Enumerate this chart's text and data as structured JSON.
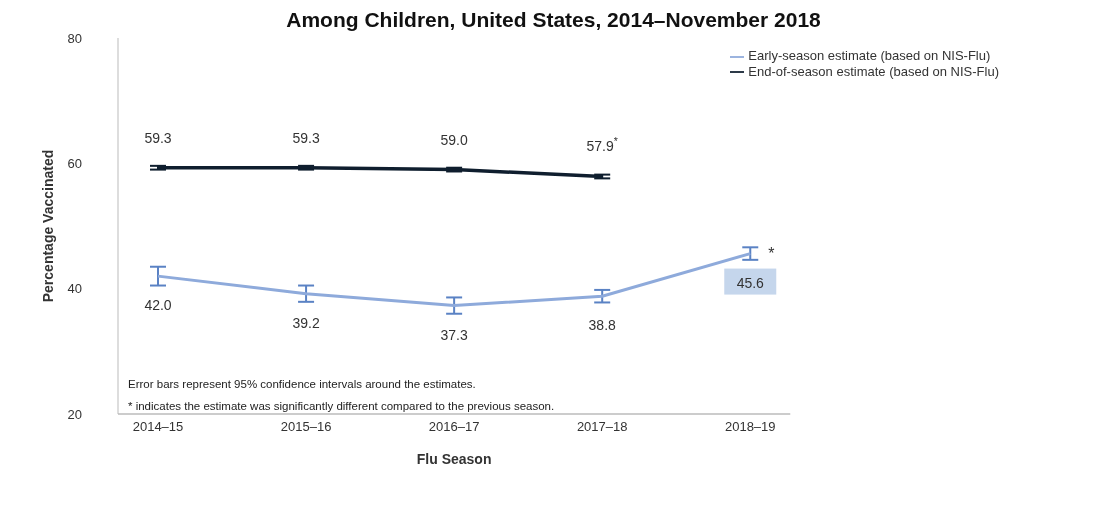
{
  "chart_data": {
    "type": "line",
    "title": "Among Children, United States, 2014–November 2018",
    "xlabel": "Flu Season",
    "ylabel": "Percentage Vaccinated",
    "categories": [
      "2014–15",
      "2015–16",
      "2016–17",
      "2017–18",
      "2018–19"
    ],
    "series": [
      {
        "name": "Early-season estimate (based on NIS-Flu)",
        "color": "#8eaadb",
        "values": [
          42.0,
          39.2,
          37.3,
          38.8,
          45.6
        ],
        "errors": [
          1.5,
          1.3,
          1.3,
          1.0,
          1.0
        ],
        "value_labels": [
          "42.0",
          "39.2",
          "37.3",
          "38.8",
          "45.6"
        ]
      },
      {
        "name": "End-of-season estimate (based on NIS-Flu)",
        "color": "#0f1e2e",
        "values": [
          59.3,
          59.3,
          59.0,
          57.9,
          null
        ],
        "errors": [
          0.3,
          0.3,
          0.3,
          0.3,
          null
        ],
        "value_labels": [
          "59.3",
          "59.3",
          "59.0",
          "57.9$^{*}$",
          null
        ]
      }
    ],
    "ylim": [
      20,
      80
    ],
    "yticks": [
      20,
      40,
      60,
      80
    ],
    "grid": false,
    "legend": "top right",
    "line_style": "solid",
    "annotations": [
      {
        "text": "*",
        "x": "2018–19",
        "y": 45.6
      },
      "Error bars represent 95% confidence  intervals  around  the  estimates.",
      "* indicates the estimate was significantly different compared to the previous season."
    ]
  }
}
